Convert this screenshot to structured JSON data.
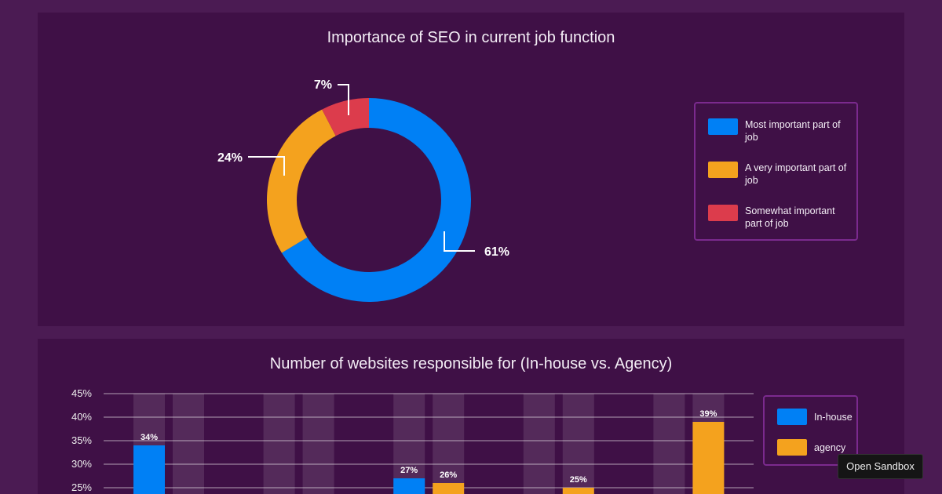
{
  "chart_data": [
    {
      "type": "pie",
      "variant": "donut",
      "title": "Importance of SEO in current job function",
      "slices": [
        {
          "label": "Most important part of job",
          "value": 61,
          "data_label": "61%",
          "color": "#0080f5"
        },
        {
          "label": "A very important part of job",
          "value": 24,
          "data_label": "24%",
          "color": "#f4a21e"
        },
        {
          "label": "Somewhat important part of job",
          "value": 7,
          "data_label": "7%",
          "color": "#dc3c4c"
        }
      ],
      "legend": "right"
    },
    {
      "type": "bar",
      "title": "Number of websites responsible for (In-house vs. Agency)",
      "y_ticks": [
        "45%",
        "40%",
        "35%",
        "30%",
        "25%"
      ],
      "ylim": [
        25,
        45
      ],
      "grid": true,
      "legend": "right",
      "series": [
        {
          "name": "In-house",
          "color": "#0080f5",
          "values": [
            34,
            null,
            27,
            null,
            null
          ]
        },
        {
          "name": "agency",
          "color": "#f4a21e",
          "values": [
            null,
            null,
            26,
            25,
            39
          ]
        }
      ],
      "data_labels": {
        "In-house": [
          "34%",
          null,
          "27%",
          null,
          null
        ],
        "agency": [
          null,
          null,
          "26%",
          "25%",
          "39%"
        ]
      }
    }
  ],
  "tooltip": {
    "label": "Open Sandbox"
  }
}
